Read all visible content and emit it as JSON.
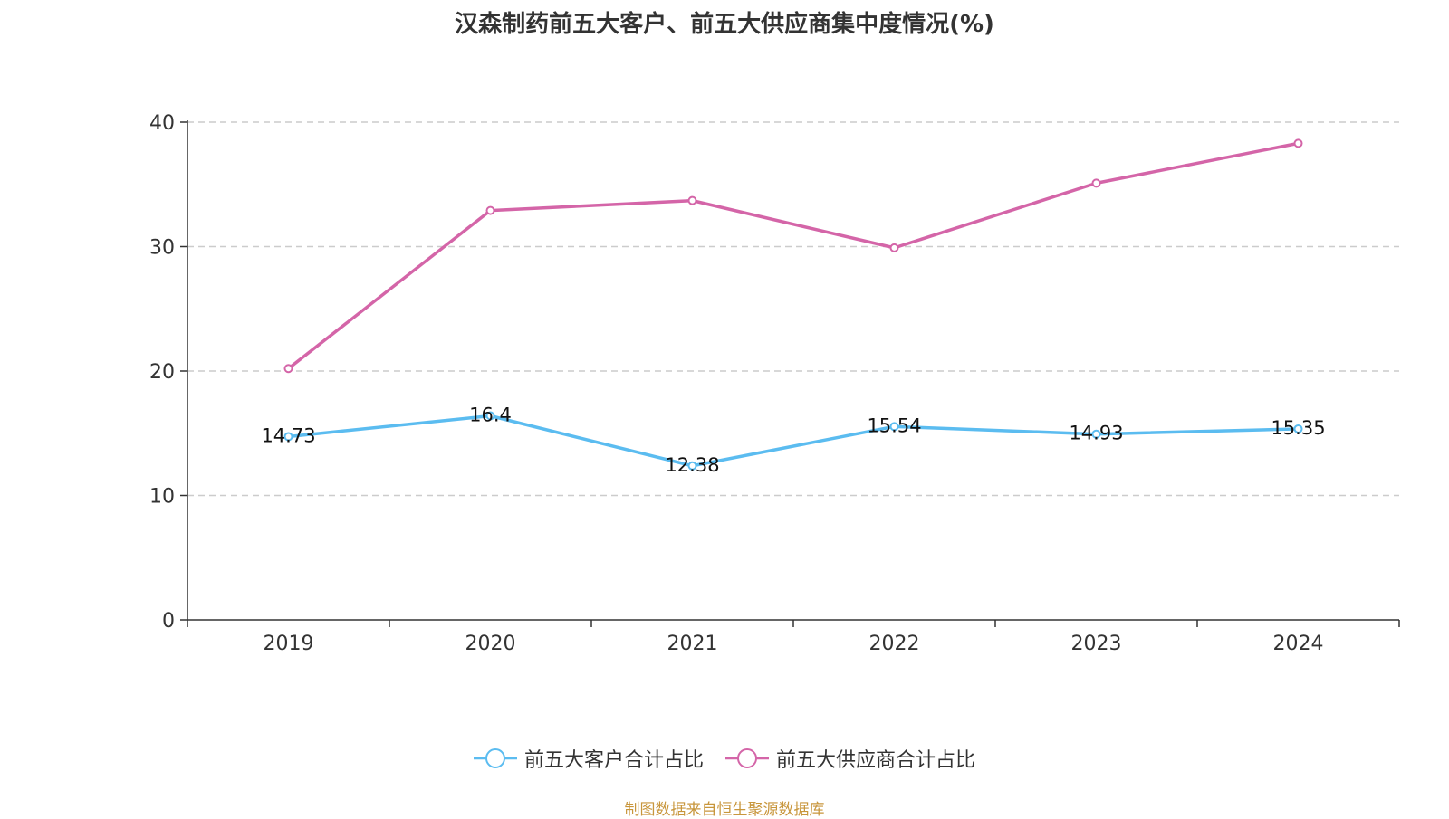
{
  "chart_data": {
    "type": "line",
    "title": "汉森制药前五大客户、前五大供应商集中度情况(%)",
    "categories": [
      "2019",
      "2020",
      "2021",
      "2022",
      "2023",
      "2024"
    ],
    "series": [
      {
        "name": "前五大客户合计占比",
        "values": [
          14.73,
          16.4,
          12.38,
          15.54,
          14.93,
          15.35
        ],
        "color": "#5bbcf0",
        "show_labels": true
      },
      {
        "name": "前五大供应商合计占比",
        "values": [
          20.2,
          32.9,
          33.7,
          29.9,
          35.1,
          38.3
        ],
        "color": "#d465a8",
        "show_labels": false
      }
    ],
    "ylim": [
      0,
      40
    ],
    "yticks": [
      0,
      10,
      20,
      30,
      40
    ],
    "grid": true,
    "legend_position": "bottom"
  },
  "source": "制图数据来自恒生聚源数据库"
}
